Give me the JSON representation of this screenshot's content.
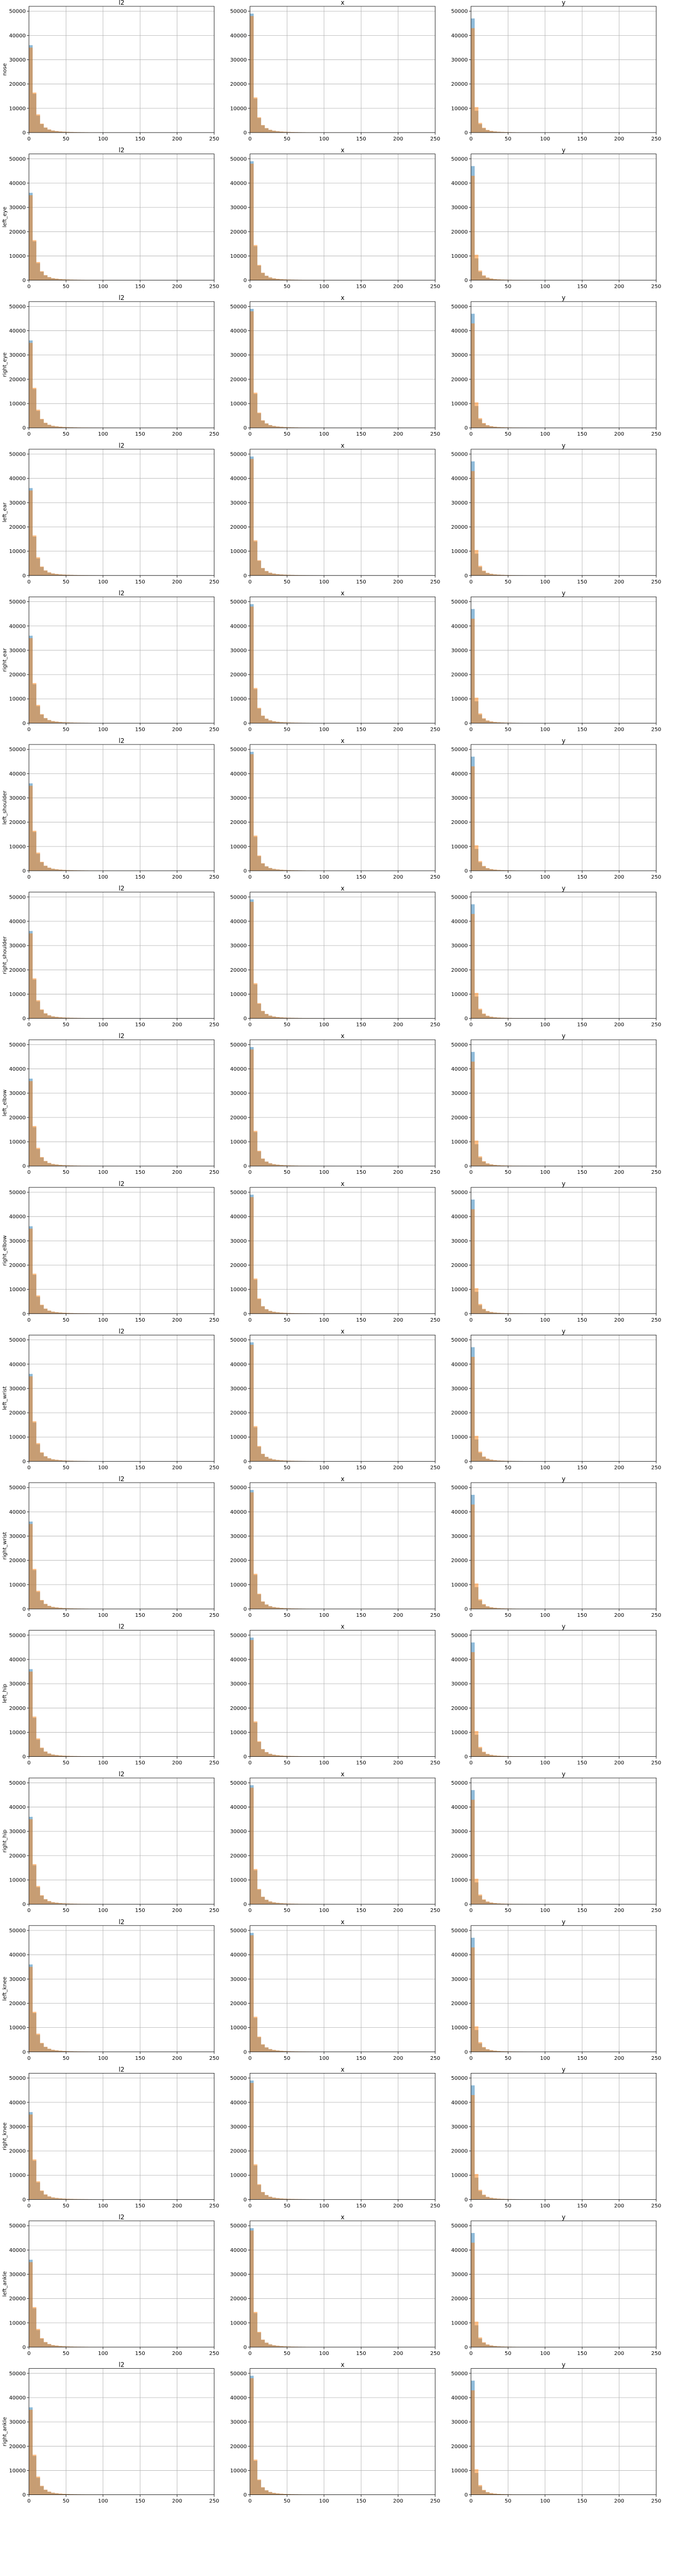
{
  "chart_data": {
    "type": "bar",
    "layout": "grid of histograms, 17 rows by 3 columns, two overlaid series per panel",
    "columns": [
      "l2",
      "x",
      "y"
    ],
    "rows": [
      "nose",
      "left_eye",
      "right_eye",
      "left_ear",
      "right_ear",
      "left_shoulder",
      "right_shoulder",
      "left_elbow",
      "right_elbow",
      "left_wrist",
      "right_wrist",
      "left_hip",
      "right_hip",
      "left_knee",
      "right_knee",
      "left_ankle",
      "right_ankle"
    ],
    "xlim": [
      0,
      250
    ],
    "xticks": [
      0,
      50,
      100,
      150,
      200,
      250
    ],
    "ylim": [
      0,
      52000
    ],
    "yticks": [
      0,
      10000,
      20000,
      30000,
      40000,
      50000
    ],
    "grid": true,
    "bin_width": 5,
    "series_colors": [
      "#1f77b4",
      "#ff7f0e"
    ],
    "series_alpha": 0.5,
    "bins_x_start": [
      0,
      5,
      10,
      15,
      20,
      25,
      30,
      35,
      40,
      45,
      50,
      55,
      60,
      65,
      70,
      75,
      80,
      85,
      90,
      95,
      100,
      105,
      110,
      115,
      120,
      125,
      130,
      135,
      140,
      145,
      150,
      155,
      160,
      165,
      170,
      175,
      180,
      185,
      190,
      195,
      200,
      205,
      210,
      215,
      220,
      225,
      230,
      235,
      240,
      245
    ],
    "panels": {
      "l2": {
        "series": [
          {
            "values": [
              36000,
              16000,
              7000,
              3500,
              2000,
              1200,
              800,
              600,
              450,
              350,
              280,
              230,
              190,
              160,
              140,
              120,
              100,
              90,
              80,
              70,
              60,
              55,
              50,
              45,
              40,
              36,
              33,
              30,
              27,
              25,
              23,
              21,
              19,
              17,
              16,
              15,
              14,
              13,
              12,
              11,
              10,
              9,
              8,
              8,
              7,
              7,
              6,
              6,
              5,
              5
            ]
          },
          {
            "values": [
              35000,
              16500,
              7500,
              3700,
              2100,
              1300,
              850,
              640,
              480,
              370,
              300,
              240,
              200,
              170,
              150,
              130,
              110,
              95,
              85,
              75,
              65,
              58,
              52,
              47,
              42,
              38,
              35,
              32,
              29,
              26,
              24,
              22,
              20,
              18,
              17,
              16,
              15,
              14,
              13,
              12,
              11,
              10,
              9,
              8,
              8,
              7,
              7,
              6,
              6,
              5
            ]
          }
        ]
      },
      "x": {
        "series": [
          {
            "values": [
              49000,
              14000,
              6000,
              3000,
              1800,
              1100,
              750,
              550,
              420,
              330,
              260,
              210,
              180,
              150,
              130,
              110,
              95,
              85,
              75,
              65,
              58,
              52,
              47,
              42,
              38,
              35,
              32,
              29,
              26,
              24,
              22,
              20,
              18,
              17,
              16,
              15,
              14,
              13,
              12,
              11,
              10,
              9,
              8,
              8,
              7,
              7,
              6,
              6,
              5,
              5
            ]
          },
          {
            "values": [
              48000,
              14500,
              6300,
              3100,
              1850,
              1150,
              780,
              570,
              430,
              340,
              270,
              220,
              185,
              155,
              135,
              115,
              100,
              88,
              78,
              68,
              60,
              54,
              48,
              43,
              39,
              36,
              33,
              30,
              27,
              25,
              23,
              21,
              19,
              17,
              16,
              15,
              14,
              13,
              12,
              11,
              10,
              9,
              8,
              8,
              7,
              7,
              6,
              6,
              5,
              5
            ]
          }
        ]
      },
      "y": {
        "series": [
          {
            "values": [
              47000,
              9000,
              3500,
              1800,
              1000,
              650,
              450,
              330,
              250,
              200,
              160,
              130,
              110,
              95,
              80,
              70,
              60,
              52,
              45,
              40,
              36,
              32,
              28,
              25,
              22,
              20,
              18,
              16,
              15,
              14,
              13,
              12,
              11,
              10,
              9,
              8,
              8,
              7,
              7,
              6,
              6,
              5,
              5,
              5,
              4,
              4,
              4,
              3,
              3,
              3
            ]
          },
          {
            "values": [
              43000,
              10500,
              4000,
              2000,
              1100,
              700,
              480,
              350,
              260,
              210,
              170,
              135,
              115,
              98,
              83,
              72,
              62,
              54,
              47,
              41,
              37,
              33,
              29,
              26,
              23,
              21,
              19,
              17,
              15,
              14,
              13,
              12,
              11,
              10,
              9,
              8,
              8,
              7,
              7,
              6,
              6,
              5,
              5,
              5,
              4,
              4,
              4,
              3,
              3,
              3
            ]
          }
        ]
      }
    }
  }
}
